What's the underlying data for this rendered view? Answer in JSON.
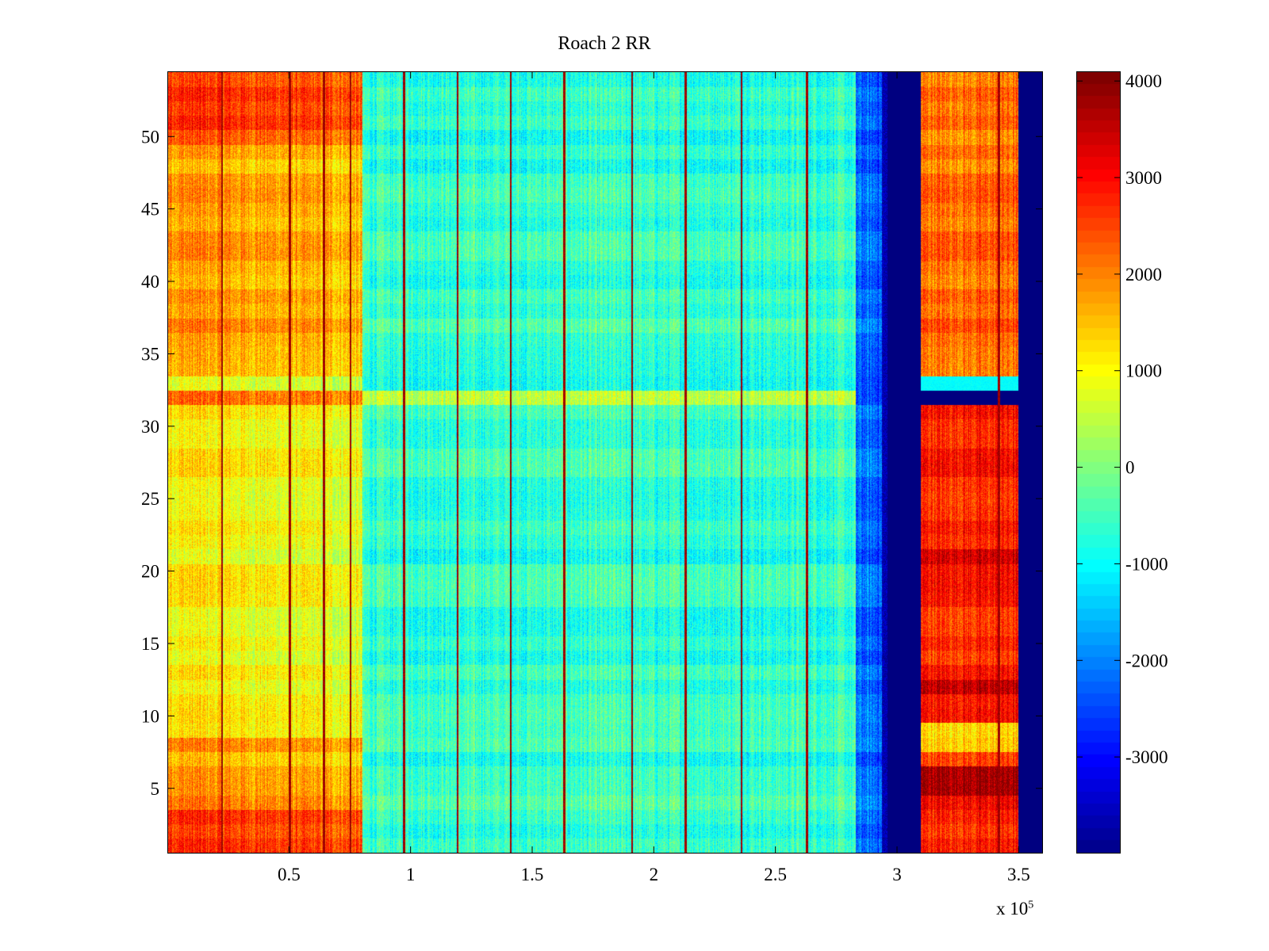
{
  "chart_data": {
    "type": "heatmap",
    "title": "Roach 2 RR",
    "xlabel": "",
    "ylabel": "",
    "x_range": [
      0,
      360000
    ],
    "y_range": [
      0.5,
      54.5
    ],
    "x_exponent_label": "x 10",
    "x_exponent_power": "5",
    "x_ticks": [
      {
        "value": 50000,
        "label": "0.5"
      },
      {
        "value": 100000,
        "label": "1"
      },
      {
        "value": 150000,
        "label": "1.5"
      },
      {
        "value": 200000,
        "label": "2"
      },
      {
        "value": 250000,
        "label": "2.5"
      },
      {
        "value": 300000,
        "label": "3"
      },
      {
        "value": 350000,
        "label": "3.5"
      }
    ],
    "y_ticks": [
      {
        "value": 5,
        "label": "5"
      },
      {
        "value": 10,
        "label": "10"
      },
      {
        "value": 15,
        "label": "15"
      },
      {
        "value": 20,
        "label": "20"
      },
      {
        "value": 25,
        "label": "25"
      },
      {
        "value": 30,
        "label": "30"
      },
      {
        "value": 35,
        "label": "35"
      },
      {
        "value": 40,
        "label": "40"
      },
      {
        "value": 45,
        "label": "45"
      },
      {
        "value": 50,
        "label": "50"
      }
    ],
    "colorbar": {
      "colormap": "jet",
      "range": [
        -4000,
        4100
      ],
      "ticks": [
        {
          "value": 4000,
          "label": "4000"
        },
        {
          "value": 3000,
          "label": "3000"
        },
        {
          "value": 2000,
          "label": "2000"
        },
        {
          "value": 1000,
          "label": "1000"
        },
        {
          "value": 0,
          "label": "0"
        },
        {
          "value": -1000,
          "label": "-1000"
        },
        {
          "value": -2000,
          "label": "-2000"
        },
        {
          "value": -3000,
          "label": "-3000"
        }
      ]
    },
    "regions": [
      {
        "x_start": 0,
        "x_end": 80000,
        "level": 1500,
        "note": "warm band, low-frequency region"
      },
      {
        "x_start": 80000,
        "x_end": 280000,
        "level": -600,
        "note": "mostly cyan/green"
      },
      {
        "x_start": 283000,
        "x_end": 294000,
        "level": -2200,
        "note": "blue edge"
      },
      {
        "x_start": 294000,
        "x_end": 310000,
        "level": -4000,
        "note": "saturated low (dark blue)"
      },
      {
        "x_start": 310000,
        "x_end": 350000,
        "level": 2800,
        "note": "hot band"
      },
      {
        "x_start": 350000,
        "x_end": 360000,
        "level": -4000,
        "note": "saturated low (dark blue)"
      }
    ],
    "highlight_rows": [
      {
        "row": 32,
        "note": "row 32 elevated at low x, saturated low at x>310000"
      },
      {
        "row": 2,
        "note": "hot row at low x"
      },
      {
        "row": 21,
        "note": "hot row in 310000-350000 band"
      }
    ],
    "vertical_lines_x": [
      22000,
      50000,
      64000,
      75000,
      97000,
      119000,
      141000,
      163000,
      191000,
      213000,
      236000,
      263000,
      342000
    ]
  }
}
